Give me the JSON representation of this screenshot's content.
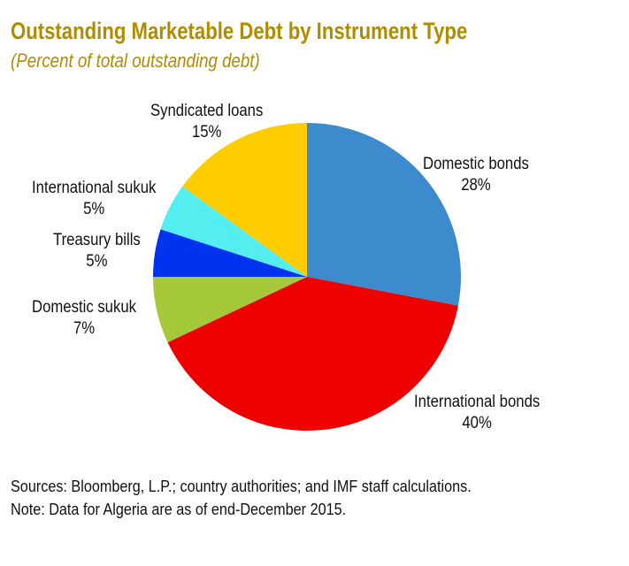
{
  "chart_data": {
    "type": "pie",
    "title": "Outstanding Marketable Debt by Instrument Type",
    "subtitle": "(Percent of total outstanding debt)",
    "start": "top, clockwise",
    "slices": [
      {
        "label": "Domestic bonds",
        "value": 28,
        "display": "28%",
        "color": "#3d8bcd"
      },
      {
        "label": "International bonds",
        "value": 40,
        "display": "40%",
        "color": "#ee0000"
      },
      {
        "label": "Domestic sukuk",
        "value": 7,
        "display": "7%",
        "color": "#a6c93a"
      },
      {
        "label": "Treasury bills",
        "value": 5,
        "display": "5%",
        "color": "#0033ee"
      },
      {
        "label": "International sukuk",
        "value": 5,
        "display": "5%",
        "color": "#55eef0"
      },
      {
        "label": "Syndicated loans",
        "value": 15,
        "display": "15%",
        "color": "#ffcc00"
      }
    ]
  },
  "footer": {
    "sources": "Sources: Bloomberg, L.P.; country authorities; and IMF staff calculations.",
    "note": "Note: Data for Algeria are as of end-December 2015."
  }
}
